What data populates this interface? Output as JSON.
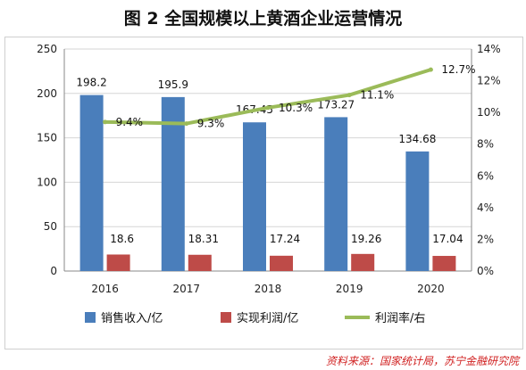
{
  "title": "图 2  全国规模以上黄酒企业运营情况",
  "source": "资料来源：国家统计局，苏宁金融研究院",
  "chart_data": {
    "type": "bar",
    "categories": [
      "2016",
      "2017",
      "2018",
      "2019",
      "2020"
    ],
    "series": [
      {
        "name": "销售收入/亿",
        "type": "bar",
        "axis": "left",
        "color": "#4a7ebb",
        "values": [
          198.2,
          195.9,
          167.45,
          173.27,
          134.68
        ],
        "labels": [
          "198.2",
          "195.9",
          "167.45",
          "173.27",
          "134.68"
        ]
      },
      {
        "name": "实现利润/亿",
        "type": "bar",
        "axis": "left",
        "color": "#be4b48",
        "values": [
          18.6,
          18.31,
          17.24,
          19.26,
          17.04
        ],
        "labels": [
          "18.6",
          "18.31",
          "17.24",
          "19.26",
          "17.04"
        ]
      },
      {
        "name": "利润率/右",
        "type": "line",
        "axis": "right",
        "color": "#9bbb59",
        "values": [
          9.4,
          9.3,
          10.3,
          11.1,
          12.7
        ],
        "labels": [
          "9.4%",
          "9.3%",
          "10.3%",
          "11.1%",
          "12.7%"
        ]
      }
    ],
    "y_left": {
      "range": [
        0,
        250
      ],
      "ticks": [
        "0",
        "50",
        "100",
        "150",
        "200",
        "250"
      ]
    },
    "y_right": {
      "range": [
        0,
        14
      ],
      "ticks": [
        "0%",
        "2%",
        "4%",
        "6%",
        "8%",
        "10%",
        "12%",
        "14%"
      ]
    },
    "grid": true,
    "legend": "bottom"
  }
}
